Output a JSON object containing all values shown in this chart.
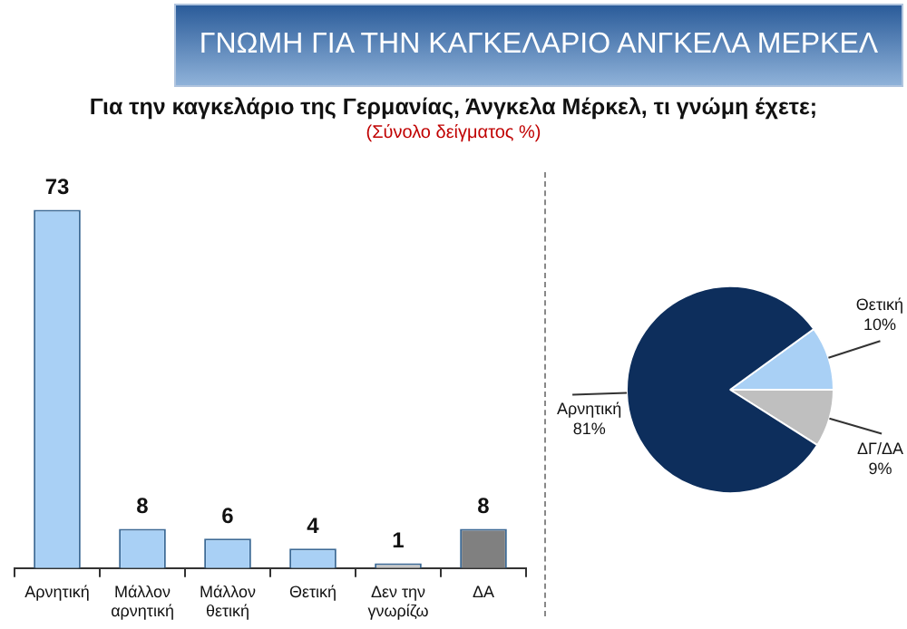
{
  "chart_data": [
    {
      "type": "bar",
      "title": "ΓΝΩΜΗ ΓΙΑ ΤΗΝ ΚΑΓΚΕΛΑΡΙΟ ΑΝΓΚΕΛΑ ΜΕΡΚΕΛ",
      "subtitle": "Για την καγκελάριο της Γερμανίας, Άνγκελα Μέρκελ, τι γνώμη έχετε;",
      "annotations": [
        "(Σύνολο δείγματος %)"
      ],
      "categories": [
        "Αρνητική",
        "Μάλλον αρνητική",
        "Μάλλον θετική",
        "Θετική",
        "Δεν την γνωρίζω",
        "ΔΑ"
      ],
      "values": [
        73,
        8,
        6,
        4,
        1,
        8
      ],
      "colors": [
        "#a9d0f5",
        "#a9d0f5",
        "#a9d0f5",
        "#a9d0f5",
        "#c8c8c8",
        "#808080"
      ],
      "data_labels": true,
      "grid": false,
      "legend": false
    },
    {
      "type": "pie",
      "categories": [
        "Θετική",
        "ΔΓ/ΔΑ",
        "Αρνητική"
      ],
      "values": [
        10,
        9,
        81
      ],
      "colors": [
        "#a9d0f5",
        "#bfbfbf",
        "#0d2e5c"
      ],
      "value_labels": [
        "10%",
        "9%",
        "81%"
      ],
      "legend": false
    }
  ]
}
